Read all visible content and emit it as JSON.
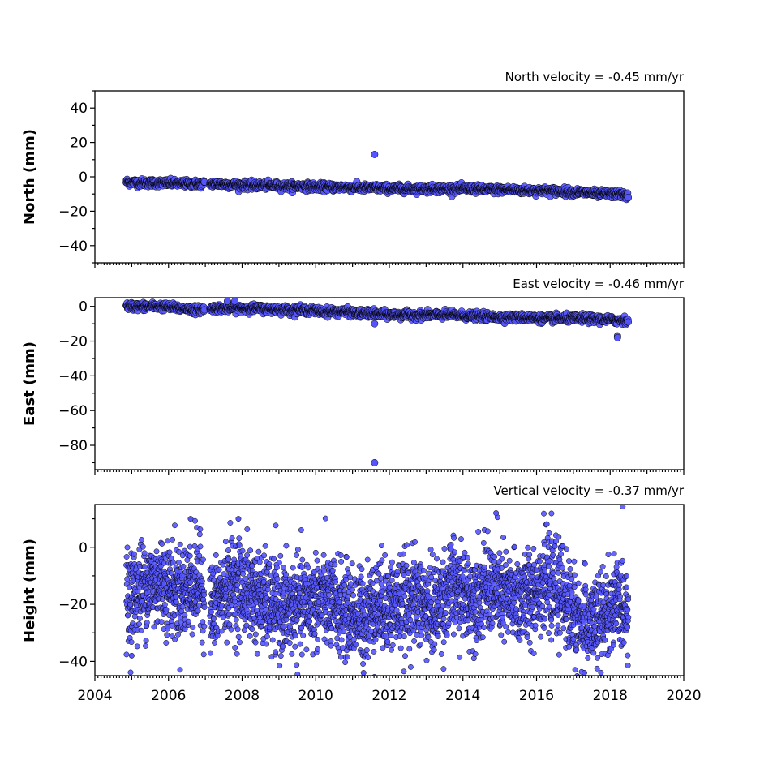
{
  "chart_data": [
    {
      "type": "scatter",
      "title": "North velocity = -0.45 mm/yr",
      "ylabel": "North (mm)",
      "xlabel": "",
      "xlim": [
        2004,
        2020
      ],
      "ylim": [
        -50,
        50
      ],
      "yticks": [
        -40,
        -20,
        0,
        20,
        40
      ],
      "ytick_labels": [
        "−40",
        "−20",
        "0",
        "20",
        "40"
      ],
      "marker_color": "#5555ff",
      "edge_color": "#000000",
      "series": [
        {
          "values_note": "daily GNSS north component",
          "x": [
            2004.9,
            2005.3,
            2005.8,
            2006.3,
            2006.8,
            2007.2,
            2007.7,
            2008.2,
            2008.7,
            2009.2,
            2009.7,
            2010.2,
            2010.7,
            2011.2,
            2011.7,
            2012.2,
            2012.7,
            2013.2,
            2013.7,
            2014.2,
            2014.7,
            2015.2,
            2015.7,
            2016.2,
            2016.7,
            2017.2,
            2017.7,
            2018.2,
            2018.45
          ],
          "y": [
            -3,
            -3.5,
            -3.5,
            -4,
            -4,
            -4,
            -4.5,
            -5,
            -5,
            -5.5,
            -5.5,
            -6,
            -6,
            -6.5,
            -6.5,
            -7,
            -7,
            -7,
            -7,
            -7,
            -7.5,
            -7.5,
            -8,
            -8,
            -8.5,
            -9,
            -10,
            -10,
            -11
          ]
        }
      ],
      "outliers": [
        {
          "x": 2011.6,
          "y": 13
        }
      ]
    },
    {
      "type": "scatter",
      "title": "East velocity = -0.46 mm/yr",
      "ylabel": "East (mm)",
      "xlabel": "",
      "xlim": [
        2004,
        2020
      ],
      "ylim": [
        -94,
        5
      ],
      "yticks": [
        -80,
        -60,
        -40,
        -20,
        0
      ],
      "ytick_labels": [
        "−80",
        "−60",
        "−40",
        "−20",
        "0"
      ],
      "marker_color": "#5555ff",
      "edge_color": "#000000",
      "series": [
        {
          "x": [
            2004.9,
            2005.3,
            2005.8,
            2006.3,
            2006.8,
            2007.2,
            2007.7,
            2008.2,
            2008.7,
            2009.2,
            2009.7,
            2010.2,
            2010.7,
            2011.2,
            2011.7,
            2012.2,
            2012.7,
            2013.2,
            2013.7,
            2014.2,
            2014.7,
            2015.2,
            2015.7,
            2016.2,
            2016.7,
            2017.2,
            2017.7,
            2018.2,
            2018.45
          ],
          "y": [
            0,
            0,
            0,
            -1,
            -2,
            -1,
            -1,
            -1,
            -1.5,
            -2,
            -2,
            -3,
            -3,
            -4,
            -4.5,
            -5,
            -5,
            -5,
            -5,
            -5.5,
            -6,
            -6.5,
            -6.5,
            -7,
            -7,
            -7,
            -7.5,
            -8,
            -8
          ]
        }
      ],
      "outliers": [
        {
          "x": 2011.6,
          "y": -90
        },
        {
          "x": 2011.6,
          "y": -10
        },
        {
          "x": 2018.2,
          "y": -17
        },
        {
          "x": 2018.2,
          "y": -18
        },
        {
          "x": 2007.6,
          "y": 3
        },
        {
          "x": 2007.8,
          "y": 3
        }
      ]
    },
    {
      "type": "scatter",
      "title": "Vertical velocity = -0.37 mm/yr",
      "ylabel": "Height (mm)",
      "xlabel": "",
      "xlim": [
        2004,
        2020
      ],
      "ylim": [
        -45,
        15
      ],
      "yticks": [
        -40,
        -20,
        0
      ],
      "ytick_labels": [
        "−40",
        "−20",
        "0"
      ],
      "xticks": [
        2004,
        2006,
        2008,
        2010,
        2012,
        2014,
        2016,
        2018,
        2020
      ],
      "xtick_labels": [
        "2004",
        "2006",
        "2008",
        "2010",
        "2012",
        "2014",
        "2016",
        "2018",
        "2020"
      ],
      "marker_color": "#5555ff",
      "edge_color": "#000000",
      "series": [
        {
          "x": [
            2004.9,
            2005.3,
            2005.8,
            2006.3,
            2006.8,
            2007.2,
            2007.7,
            2008.2,
            2008.7,
            2009.2,
            2009.7,
            2010.2,
            2010.7,
            2011.2,
            2011.7,
            2012.2,
            2012.7,
            2013.2,
            2013.7,
            2014.2,
            2014.7,
            2015.2,
            2015.7,
            2016.2,
            2016.7,
            2017.2,
            2017.7,
            2018.2,
            2018.45
          ],
          "y": [
            -18,
            -14,
            -12,
            -16,
            -12,
            -22,
            -12,
            -16,
            -20,
            -22,
            -20,
            -18,
            -22,
            -24,
            -20,
            -20,
            -18,
            -22,
            -14,
            -18,
            -14,
            -18,
            -18,
            -12,
            -16,
            -28,
            -26,
            -20,
            -20
          ],
          "spread": 8
        }
      ],
      "outliers": [
        {
          "x": 2006.6,
          "y": 10
        },
        {
          "x": 2007.9,
          "y": 10
        },
        {
          "x": 2014.9,
          "y": 12
        },
        {
          "x": 2011.3,
          "y": -44
        },
        {
          "x": 2017.3,
          "y": -44
        },
        {
          "x": 2005.0,
          "y": -38
        }
      ]
    }
  ]
}
